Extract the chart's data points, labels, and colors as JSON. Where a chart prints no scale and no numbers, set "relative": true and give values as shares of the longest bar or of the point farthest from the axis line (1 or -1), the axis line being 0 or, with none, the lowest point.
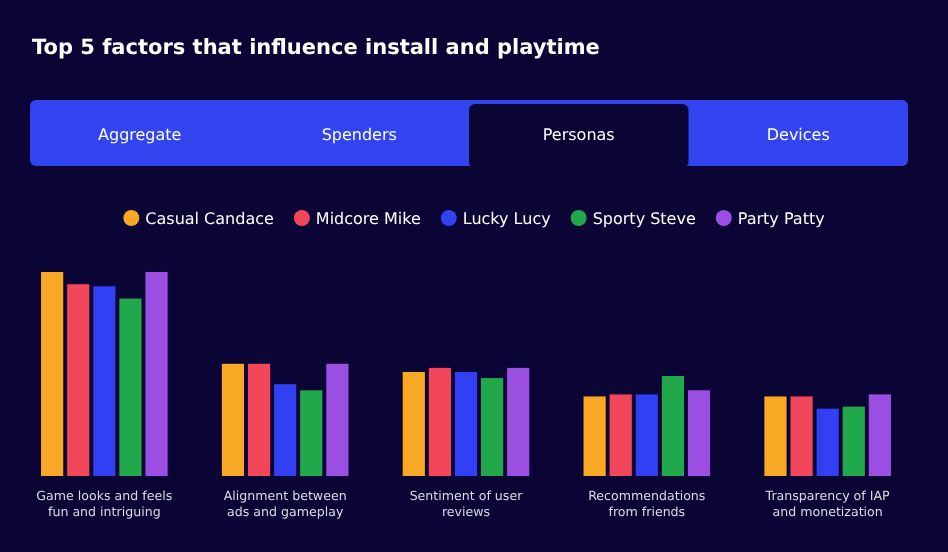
{
  "chart_data": {
    "type": "bar",
    "title": "Top 5 factors that influence install and playtime",
    "annotations": [
      "Aggregate",
      "Spenders",
      "Personas",
      "Devices"
    ],
    "categories": [
      "Game looks and feels fun and intriguing",
      "Alignment between ads and gameplay",
      "Sentiment of user reviews",
      "Recommendations from friends",
      "Transparency of IAP and monetization"
    ],
    "relative": true,
    "legend": "top",
    "series": [
      {
        "name": "Casual Candace",
        "color": "#f8a825",
        "values": [
          1,
          0.55,
          0.51,
          0.39,
          0.39
        ]
      },
      {
        "name": "Midcore Mike",
        "color": "#f2465b",
        "values": [
          0.94,
          0.55,
          0.53,
          0.4,
          0.39
        ]
      },
      {
        "name": "Lucky Lucy",
        "color": "#3040f2",
        "values": [
          0.93,
          0.45,
          0.51,
          0.4,
          0.33
        ]
      },
      {
        "name": "Sporty Steve",
        "color": "#20a84a",
        "values": [
          0.87,
          0.42,
          0.48,
          0.49,
          0.34
        ]
      },
      {
        "name": "Party Patty",
        "color": "#9a4fe2",
        "values": [
          1,
          0.55,
          0.53,
          0.42,
          0.4
        ]
      }
    ]
  }
}
